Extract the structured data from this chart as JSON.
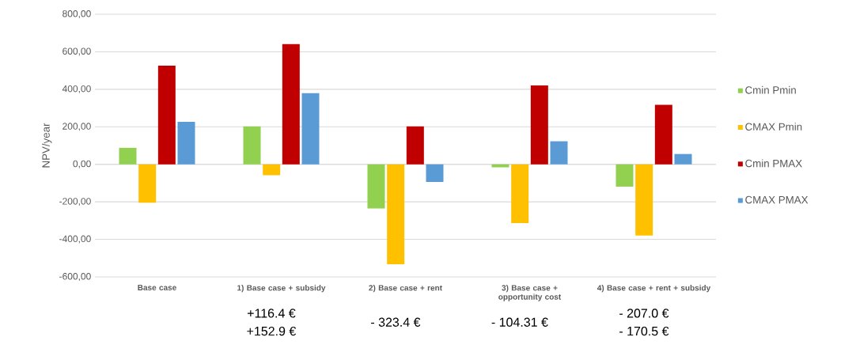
{
  "chart_data": {
    "type": "bar",
    "ylabel": "NPV/year",
    "categories": [
      "Base case",
      "1) Base case + subsidy",
      "2) Base case + rent",
      "3) Base case + opportunity cost",
      "4) Base case + rent + subsidy"
    ],
    "series": [
      {
        "name": "Cmin Pmin",
        "color": "#92d050",
        "values": [
          88,
          202,
          -235,
          -16,
          -119
        ]
      },
      {
        "name": "CMAX Pmin",
        "color": "#ffc000",
        "values": [
          -205,
          -58,
          -532,
          -313,
          -380
        ]
      },
      {
        "name": "Cmin PMAX",
        "color": "#c00000",
        "values": [
          526,
          641,
          202,
          421,
          317
        ]
      },
      {
        "name": "CMAX PMAX",
        "color": "#5b9bd5",
        "values": [
          227,
          379,
          -94,
          123,
          55
        ]
      }
    ],
    "ylim": [
      -600,
      800
    ],
    "yticks": [
      {
        "value": -600,
        "label": "-600,00"
      },
      {
        "value": -400,
        "label": "-400,00"
      },
      {
        "value": -200,
        "label": "-200,00"
      },
      {
        "value": 0,
        "label": "0,00"
      },
      {
        "value": 200,
        "label": "200,00"
      },
      {
        "value": 400,
        "label": "400,00"
      },
      {
        "value": 600,
        "label": "600,00"
      },
      {
        "value": 800,
        "label": "800,00"
      }
    ],
    "grid": "y",
    "legend": "right",
    "annotations": [
      "+116.4 €",
      "+152.9 €",
      "- 323.4 €",
      "- 104.31 €",
      "- 207.0 €",
      "- 170.5 €"
    ]
  }
}
